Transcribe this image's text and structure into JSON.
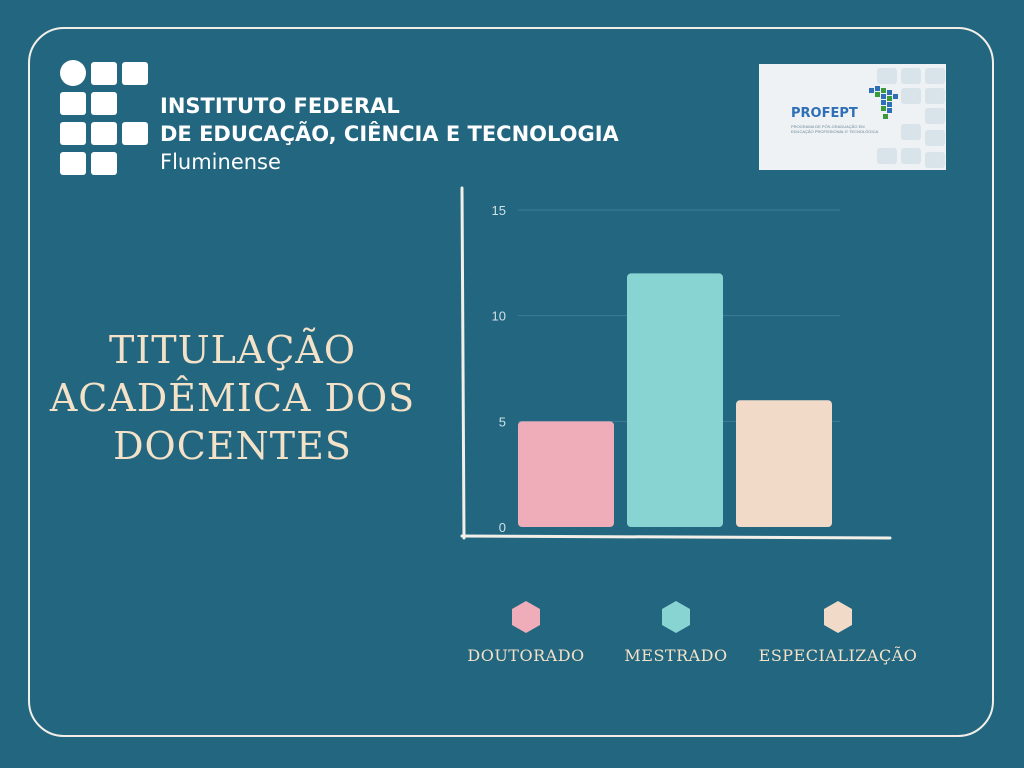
{
  "header": {
    "institution_line1": "INSTITUTO FEDERAL",
    "institution_line2": "DE EDUCAÇÃO, CIÊNCIA E TECNOLOGIA",
    "institution_line3": "Fluminense",
    "partner_logo_text": "PROFEPT",
    "partner_logo_subtext": "PROGRAMA DE PÓS-GRADUAÇÃO EM EDUCAÇÃO PROFISSIONAL E TECNOLÓGICA"
  },
  "colors": {
    "background": "#236680",
    "doutorado": "#eeadb9",
    "mestrado": "#88d4d3",
    "especializacao": "#f2dac8",
    "axis": "#f2efe8",
    "title_text": "#f3e2c8"
  },
  "chart_data": {
    "type": "bar",
    "title": "TITULAÇÃO ACADÊMICA DOS DOCENTES",
    "categories": [
      "DOUTORADO",
      "MESTRADO",
      "ESPECIALIZAÇÃO"
    ],
    "values": [
      5,
      12,
      6
    ],
    "ylim": [
      0,
      15
    ],
    "yticks": [
      0,
      5,
      10,
      15
    ],
    "grid": true,
    "legend_position": "bottom",
    "legend": [
      "DOUTORADO",
      "MESTRADO",
      "ESPECIALIZAÇÃO"
    ]
  }
}
